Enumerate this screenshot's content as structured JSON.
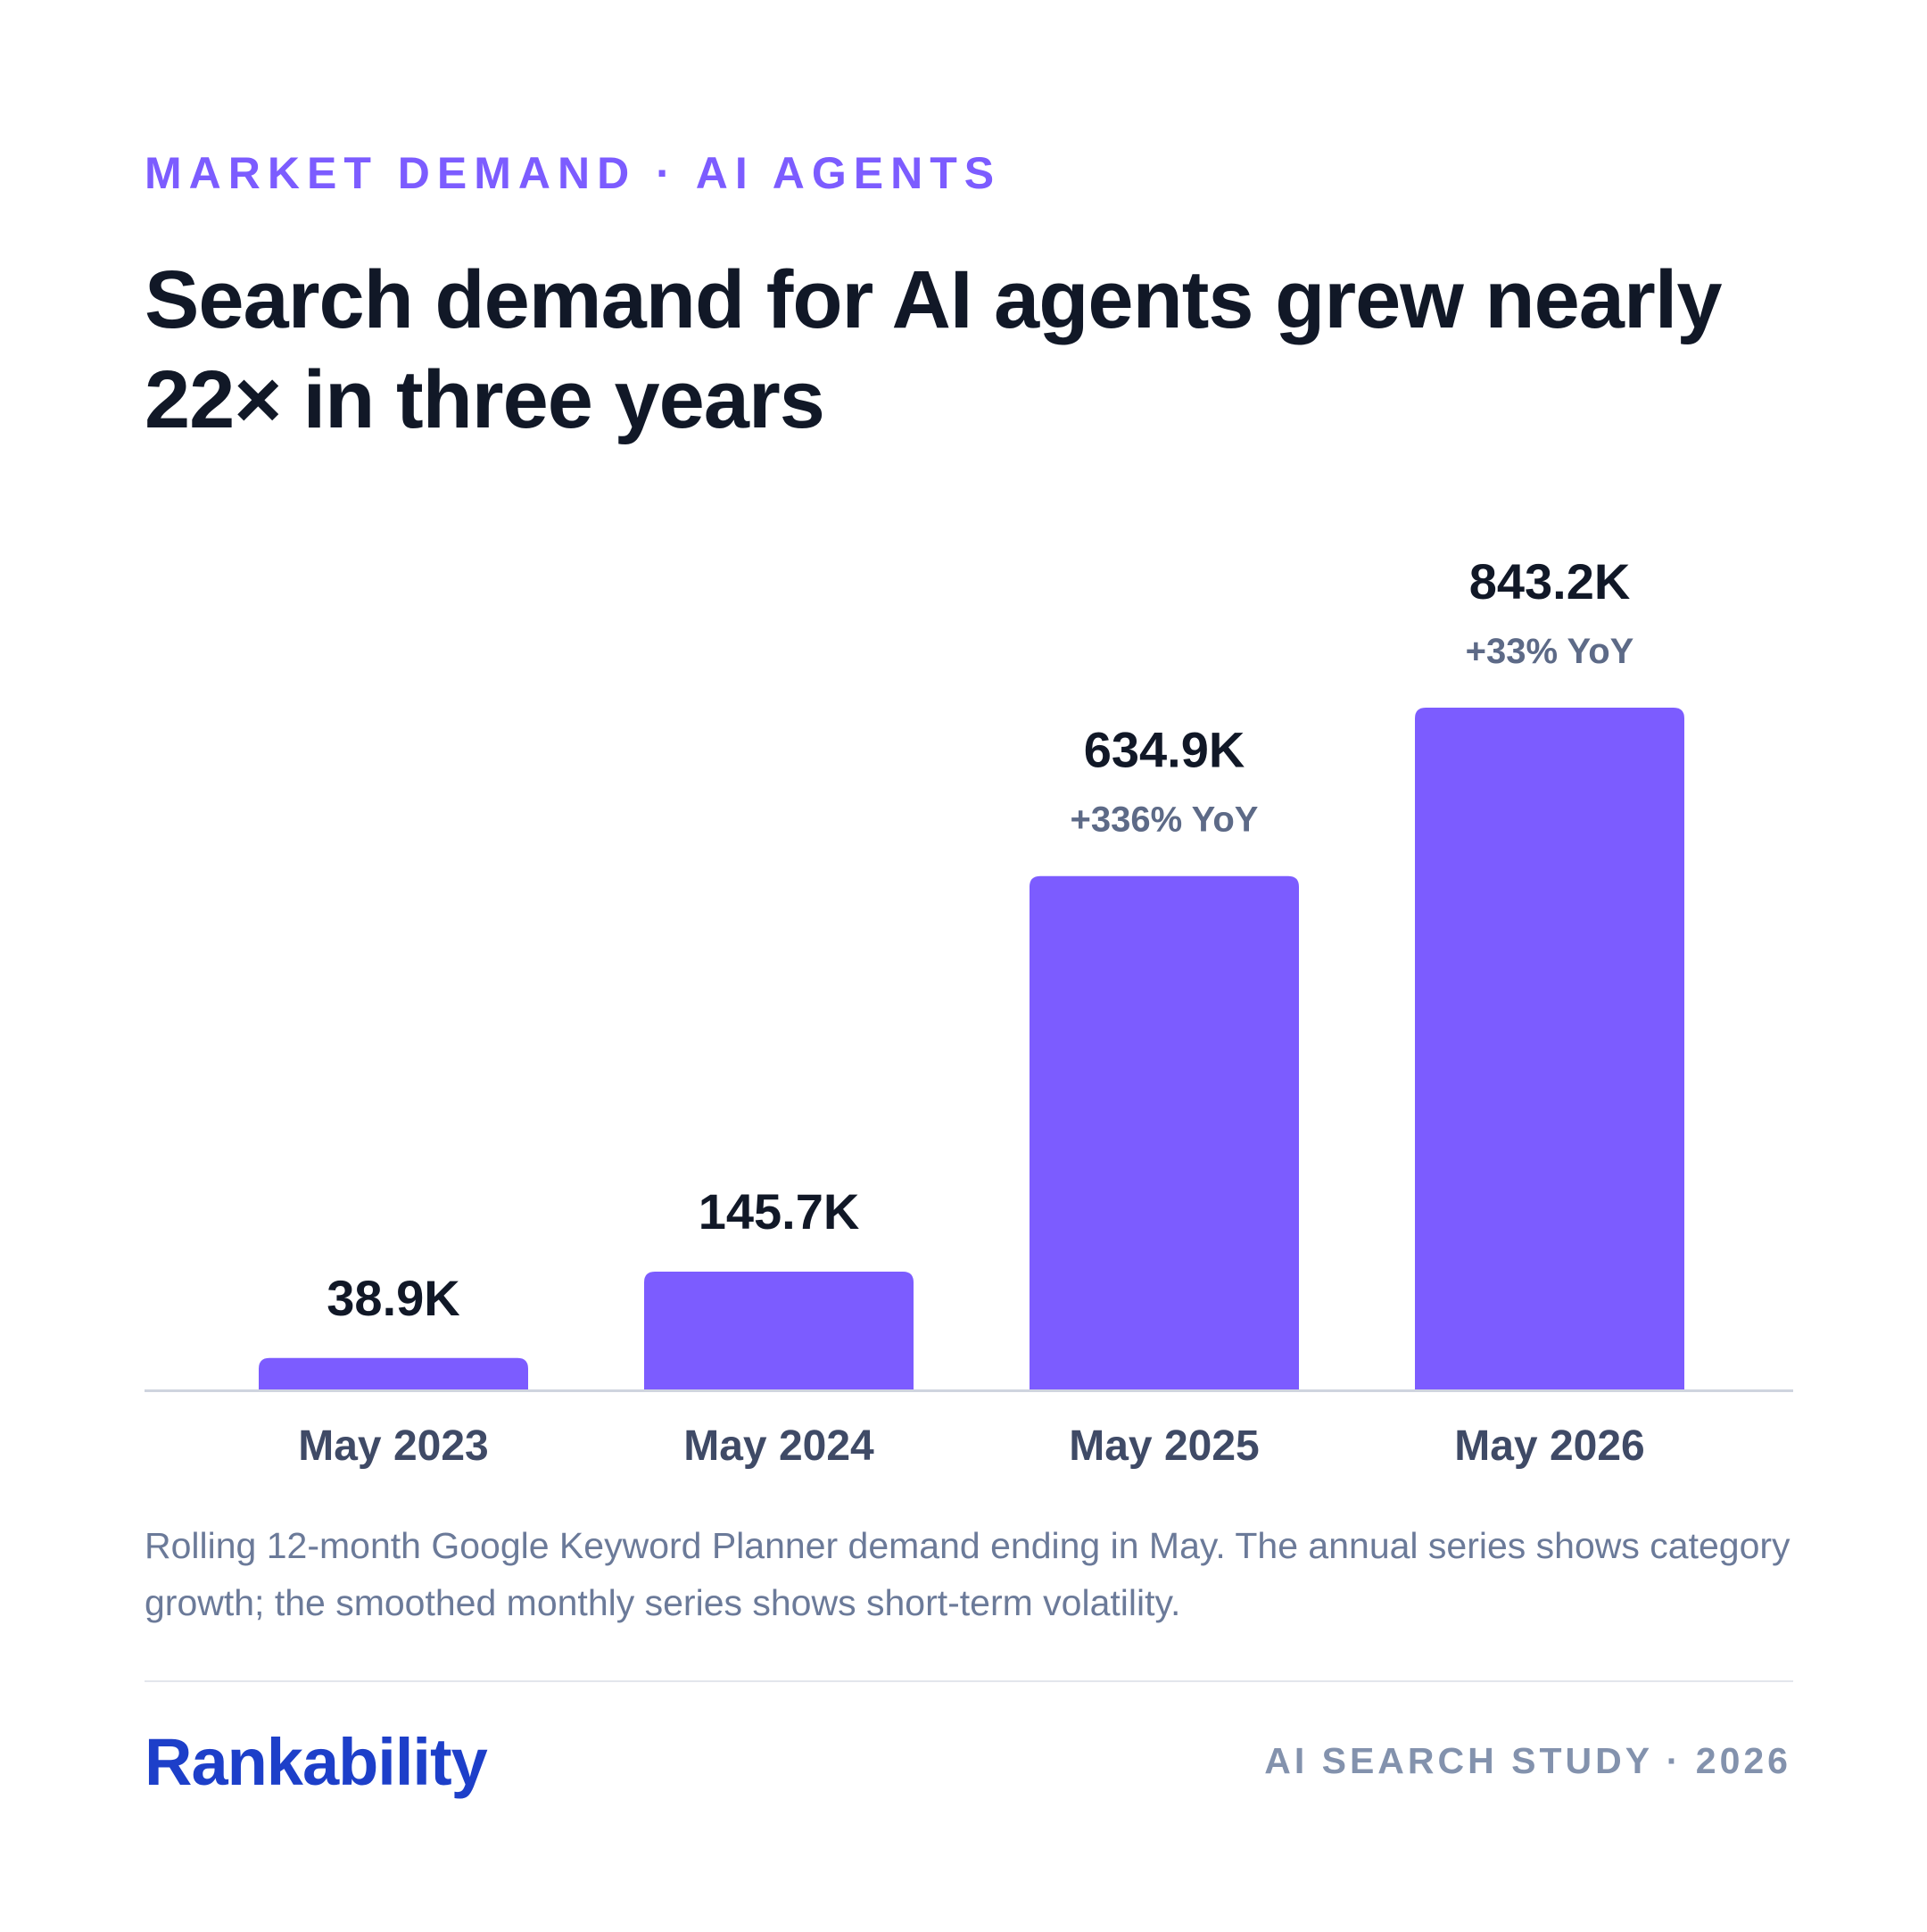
{
  "eyebrow": "MARKET DEMAND · AI AGENTS",
  "headline": "Search demand for AI agents grew nearly 22× in three years",
  "caption": "Rolling 12-month Google Keyword Planner demand ending in May. The annual series shows category growth; the smoothed monthly series shows short-term volatility.",
  "footer": {
    "brand": "Rankability",
    "tagline": "AI SEARCH STUDY · 2026"
  },
  "colors": {
    "bar": "#7c5cff",
    "value_label": "#111827",
    "yoy_label": "#5d6a87",
    "axis_label": "#3f4a66",
    "baseline": "#cfd4df"
  },
  "chart_data": {
    "type": "bar",
    "categories": [
      "May 2023",
      "May 2024",
      "May 2025",
      "May 2026"
    ],
    "values": [
      38.9,
      145.7,
      634.9,
      843.2
    ],
    "value_labels": [
      "38.9K",
      "145.7K",
      "634.9K",
      "843.2K"
    ],
    "yoy_labels": [
      "",
      "",
      "+336% YoY",
      "+33% YoY"
    ],
    "unit": "K",
    "title": "",
    "xlabel": "",
    "ylabel": "",
    "ylim": [
      0,
      843.2
    ],
    "grid": false,
    "legend": "none"
  }
}
